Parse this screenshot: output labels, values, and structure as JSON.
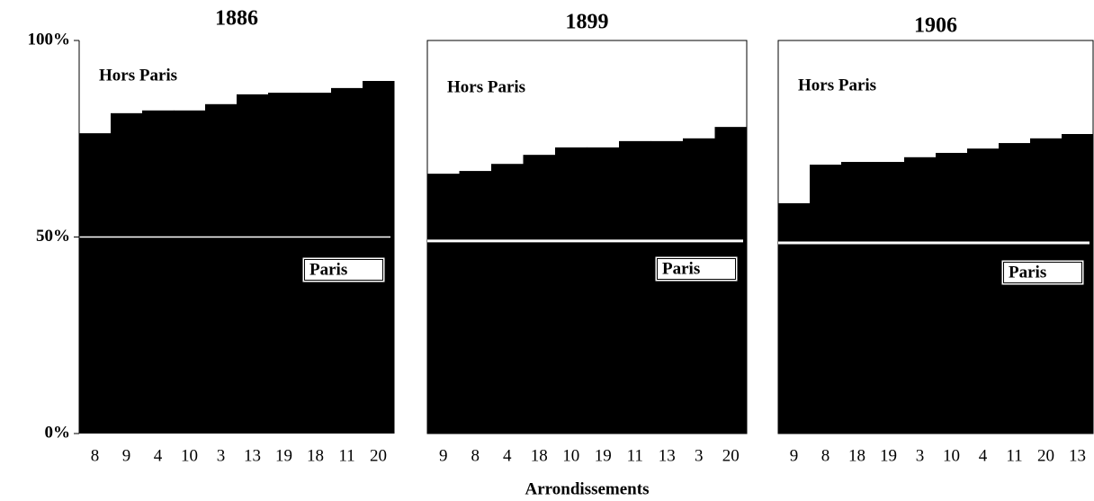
{
  "chart_data": [
    {
      "type": "bar",
      "title": "1886",
      "series_labels": [
        "Hors Paris",
        "Paris"
      ],
      "categories": [
        "8",
        "9",
        "4",
        "10",
        "3",
        "13",
        "19",
        "18",
        "11",
        "20"
      ],
      "values": [
        76.4,
        81.5,
        82.2,
        82.2,
        83.8,
        86.3,
        86.7,
        86.7,
        87.9,
        89.7
      ],
      "color": "#000000",
      "reference_line": 50,
      "frame": false,
      "ylim": [
        0,
        100
      ],
      "yticks": [
        {
          "value": 0,
          "label": "0%"
        },
        {
          "value": 50,
          "label": "50%"
        },
        {
          "value": 100,
          "label": "100%"
        }
      ]
    },
    {
      "type": "bar",
      "title": "1899",
      "series_labels": [
        "Hors Paris",
        "Paris"
      ],
      "categories": [
        "9",
        "8",
        "4",
        "18",
        "10",
        "19",
        "11",
        "13",
        "3",
        "20"
      ],
      "values": [
        66.1,
        66.8,
        68.6,
        70.9,
        72.8,
        72.8,
        74.4,
        74.4,
        75.1,
        78.0
      ],
      "color": "#000000",
      "reference_line": 49,
      "frame": true,
      "ylim": [
        0,
        100
      ],
      "x_label": "Arrondissements"
    },
    {
      "type": "bar",
      "title": "1906",
      "series_labels": [
        "Hors Paris",
        "Paris"
      ],
      "categories": [
        "9",
        "8",
        "18",
        "19",
        "3",
        "10",
        "4",
        "11",
        "20",
        "13"
      ],
      "values": [
        58.6,
        68.4,
        69.1,
        69.1,
        70.3,
        71.4,
        72.5,
        73.9,
        75.1,
        76.2
      ],
      "color": "#000000",
      "reference_line": 48.5,
      "frame": true,
      "ylim": [
        0,
        100
      ]
    }
  ]
}
